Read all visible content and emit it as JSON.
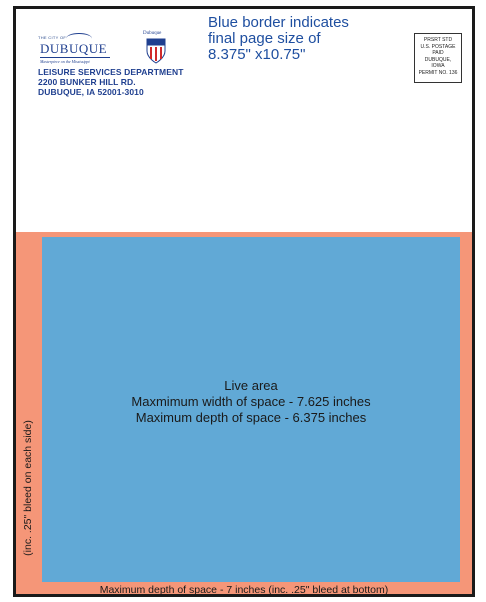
{
  "header": {
    "logo": {
      "city_of": "THE CITY OF",
      "name": "DUBUQUE",
      "tagline": "Masterpiece on the Mississippi"
    },
    "shield": {
      "label": "Dubuque",
      "icon": "shield-icon"
    },
    "address_lines": [
      "LEISURE SERVICES DEPARTMENT",
      "2200 BUNKER HILL RD.",
      "DUBUQUE, IA 52001-3010"
    ]
  },
  "note_lines": [
    "Blue border indicates",
    "final page size of",
    "8.375\" x10.75\""
  ],
  "postage_lines": [
    "PRSRT STD",
    "U.S. POSTAGE",
    "PAID",
    "DUBUQUE,",
    "IOWA",
    "PERMIT NO. 136"
  ],
  "live_area_lines": [
    "Live area",
    "Maxmimum width of space - 7.625 inches",
    "Maximum depth of space - 6.375 inches"
  ],
  "side_label": "(inc. .25\" bleed on each side)",
  "bottom_label": "Maximum depth of space - 7 inches (inc. .25\" bleed at bottom)",
  "colors": {
    "bleed": "#f59678",
    "live": "#61a9d6",
    "brand_blue": "#1f3f8f"
  }
}
